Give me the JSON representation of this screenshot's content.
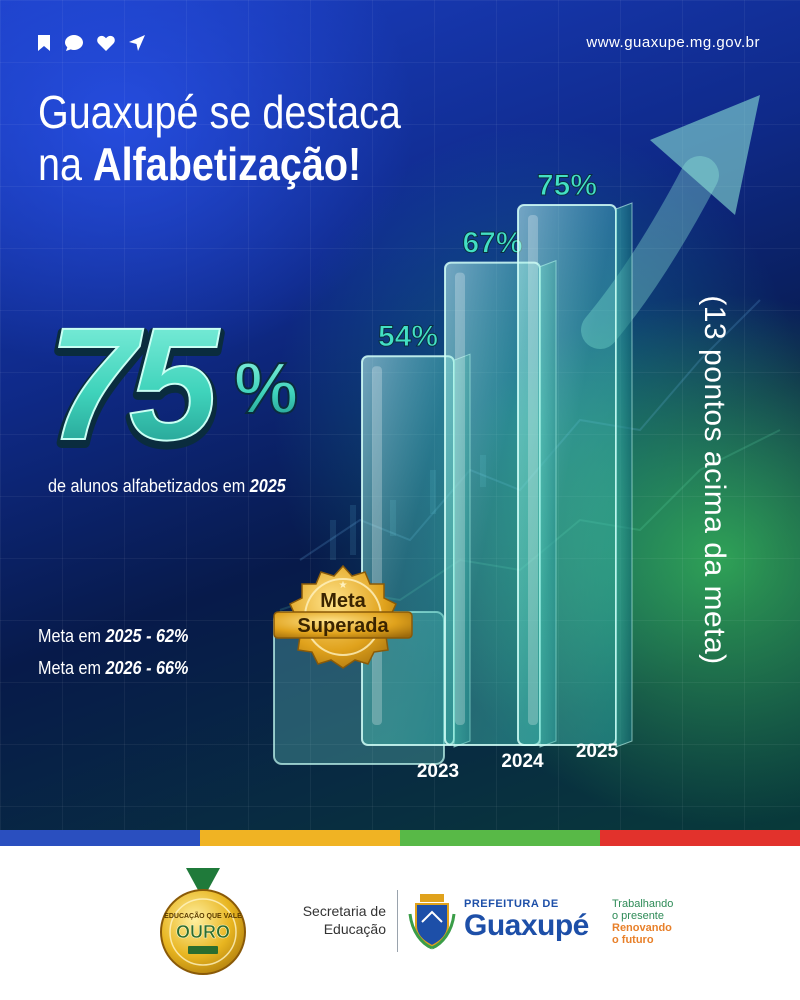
{
  "header": {
    "icons": [
      "bookmark-icon",
      "chat-bubble-icon",
      "heart-icon",
      "send-icon"
    ],
    "site_url": "www.guaxupe.mg.gov.br"
  },
  "title": {
    "line1": "Guaxupé se destaca",
    "line2_prefix": "na ",
    "line2_bold": "Alfabetização!"
  },
  "highlight": {
    "number": "75",
    "percent_sign": "%",
    "caption_prefix": "de alunos alfabetizados em ",
    "caption_year": "2025"
  },
  "goals": [
    {
      "prefix": "Meta em ",
      "value": "2025 - 62%"
    },
    {
      "prefix": "Meta em ",
      "value": "2026 - 66%"
    }
  ],
  "badge": {
    "line1": "Meta",
    "line2": "Superada"
  },
  "side_note": "(13 pontos acima da meta)",
  "chart_data": {
    "type": "bar",
    "categories": [
      "2023",
      "2024",
      "2025"
    ],
    "values": [
      54,
      67,
      75
    ],
    "value_labels": [
      "54%",
      "67%",
      "75%"
    ],
    "ylim": [
      0,
      80
    ]
  },
  "colors": {
    "accent_teal": "#43e0c4",
    "badge_gold": "#e0a21c",
    "stripe_colors": [
      "#2a4fbf",
      "#f0b323",
      "#58b947",
      "#e2322c"
    ]
  },
  "footer": {
    "medal_text_top": "EDUCAÇÃO QUE VALE",
    "medal_text_main": "OURO",
    "secretaria_line1": "Secretaria de",
    "secretaria_line2": "Educação",
    "prefeitura_small": "PREFEITURA DE",
    "prefeitura_name": "Guaxupé",
    "slogan_1": "Trabalhando",
    "slogan_2": "o presente",
    "slogan_3": "Renovando",
    "slogan_4": "o futuro"
  }
}
